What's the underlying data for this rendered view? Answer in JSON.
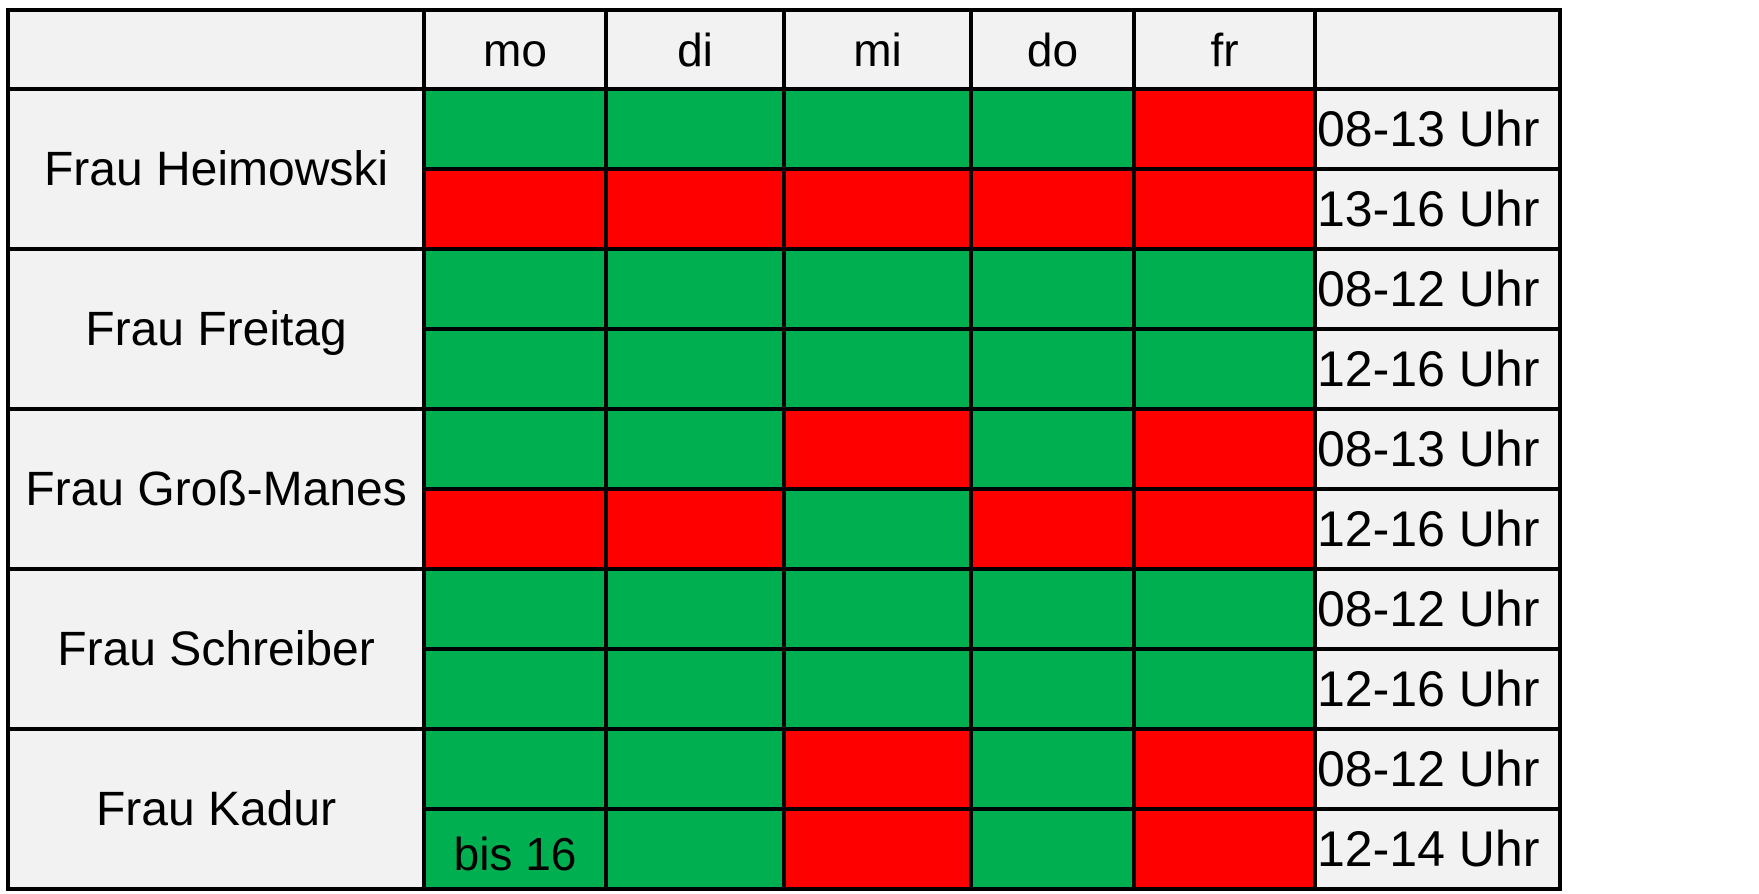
{
  "colors": {
    "available": "#00b050",
    "unavailable": "#ff0000",
    "header_bg": "#f2f2f2",
    "grid": "#000000"
  },
  "legend_values": {
    "g": "available",
    "r": "unavailable"
  },
  "days": [
    "mo",
    "di",
    "mi",
    "do",
    "fr"
  ],
  "people": [
    {
      "name": "Frau Heimowski",
      "slots": [
        {
          "time": "08-13 Uhr",
          "status": [
            "g",
            "g",
            "g",
            "g",
            "r"
          ],
          "notes": [
            "",
            "",
            "",
            "",
            ""
          ]
        },
        {
          "time": "13-16 Uhr",
          "status": [
            "r",
            "r",
            "r",
            "r",
            "r"
          ],
          "notes": [
            "",
            "",
            "",
            "",
            ""
          ]
        }
      ]
    },
    {
      "name": "Frau Freitag",
      "slots": [
        {
          "time": "08-12 Uhr",
          "status": [
            "g",
            "g",
            "g",
            "g",
            "g"
          ],
          "notes": [
            "",
            "",
            "",
            "",
            ""
          ]
        },
        {
          "time": "12-16 Uhr",
          "status": [
            "g",
            "g",
            "g",
            "g",
            "g"
          ],
          "notes": [
            "",
            "",
            "",
            "",
            ""
          ]
        }
      ]
    },
    {
      "name": "Frau Groß-Manes",
      "slots": [
        {
          "time": "08-13 Uhr",
          "status": [
            "g",
            "g",
            "r",
            "g",
            "r"
          ],
          "notes": [
            "",
            "",
            "",
            "",
            ""
          ]
        },
        {
          "time": "12-16 Uhr",
          "status": [
            "r",
            "r",
            "g",
            "r",
            "r"
          ],
          "notes": [
            "",
            "",
            "",
            "",
            ""
          ]
        }
      ]
    },
    {
      "name": "Frau Schreiber",
      "slots": [
        {
          "time": "08-12 Uhr",
          "status": [
            "g",
            "g",
            "g",
            "g",
            "g"
          ],
          "notes": [
            "",
            "",
            "",
            "",
            ""
          ]
        },
        {
          "time": "12-16 Uhr",
          "status": [
            "g",
            "g",
            "g",
            "g",
            "g"
          ],
          "notes": [
            "",
            "",
            "",
            "",
            ""
          ]
        }
      ]
    },
    {
      "name": "Frau Kadur",
      "slots": [
        {
          "time": "08-12 Uhr",
          "status": [
            "g",
            "g",
            "r",
            "g",
            "r"
          ],
          "notes": [
            "",
            "",
            "",
            "",
            ""
          ]
        },
        {
          "time": "12-14 Uhr",
          "status": [
            "g",
            "g",
            "r",
            "g",
            "r"
          ],
          "notes": [
            "bis 16",
            "",
            "",
            "",
            ""
          ]
        }
      ]
    }
  ]
}
